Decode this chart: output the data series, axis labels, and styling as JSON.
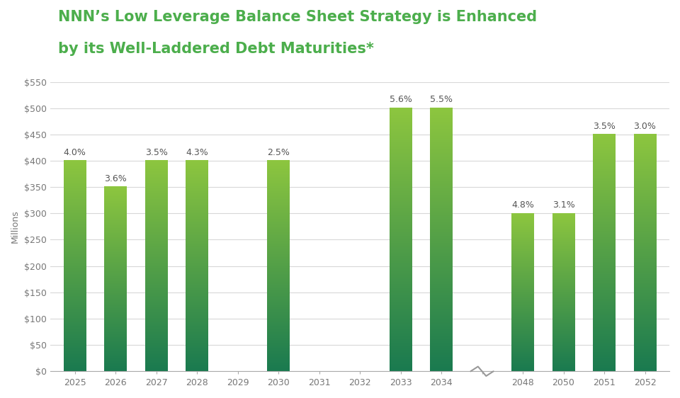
{
  "title_line1": "NNN’s Low Leverage Balance Sheet Strategy is Enhanced",
  "title_line2": "by its Well-Laddered Debt Maturities*",
  "title_color": "#4cae4c",
  "ylabel": "Millions",
  "background_color": "#ffffff",
  "bar_data": [
    {
      "year": 2025,
      "value": 400,
      "rate": "4.0%"
    },
    {
      "year": 2026,
      "value": 350,
      "rate": "3.6%"
    },
    {
      "year": 2027,
      "value": 400,
      "rate": "3.5%"
    },
    {
      "year": 2028,
      "value": 400,
      "rate": "4.3%"
    },
    {
      "year": 2029,
      "value": 0,
      "rate": ""
    },
    {
      "year": 2030,
      "value": 400,
      "rate": "2.5%"
    },
    {
      "year": 2031,
      "value": 0,
      "rate": ""
    },
    {
      "year": 2032,
      "value": 0,
      "rate": ""
    },
    {
      "year": 2033,
      "value": 500,
      "rate": "5.6%"
    },
    {
      "year": 2034,
      "value": 500,
      "rate": "5.5%"
    },
    {
      "year": 2048,
      "value": 300,
      "rate": "4.8%"
    },
    {
      "year": 2050,
      "value": 300,
      "rate": "3.1%"
    },
    {
      "year": 2051,
      "value": 450,
      "rate": "3.5%"
    },
    {
      "year": 2052,
      "value": 450,
      "rate": "3.0%"
    }
  ],
  "bar_color_top": "#8dc63f",
  "bar_color_bottom": "#1a7a50",
  "ylim": [
    0,
    550
  ],
  "yticks": [
    0,
    50,
    100,
    150,
    200,
    250,
    300,
    350,
    400,
    450,
    500,
    550
  ],
  "grid_color": "#d8d8d8",
  "axis_label_color": "#777777",
  "rate_color": "#555555",
  "bar_width": 0.55
}
